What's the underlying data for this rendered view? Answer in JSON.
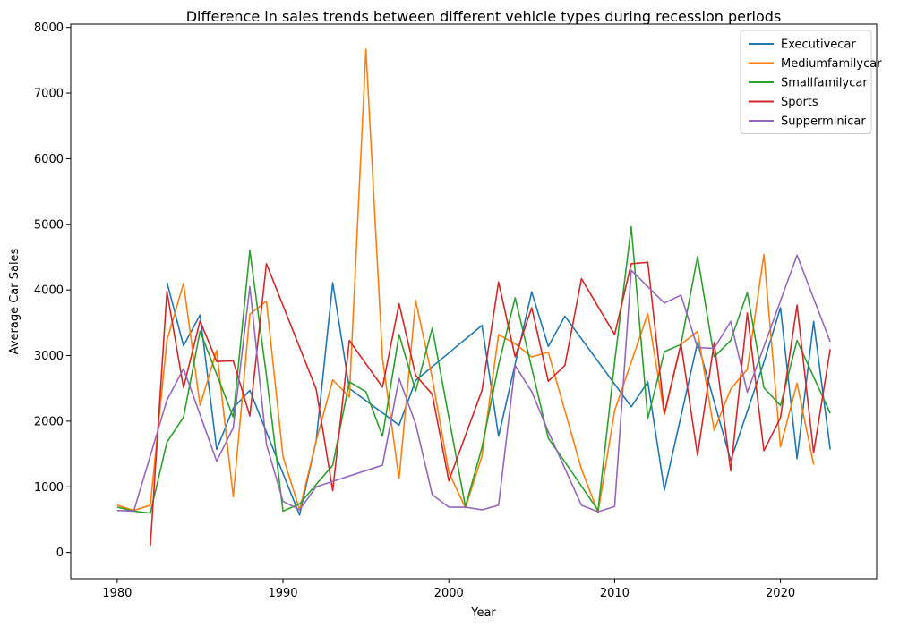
{
  "chart_data": {
    "type": "line",
    "title": "Difference in sales trends between different vehicle types during recession periods",
    "xlabel": "Year",
    "ylabel": "Average Car Sales",
    "xlim": [
      1977.2,
      2025.8
    ],
    "ylim": [
      -400,
      8050
    ],
    "xticks": [
      1980,
      1990,
      2000,
      2010,
      2020
    ],
    "yticks": [
      0,
      1000,
      2000,
      3000,
      4000,
      5000,
      6000,
      7000,
      8000
    ],
    "grid": false,
    "legend_position": "top-right",
    "series": [
      {
        "name": "Executivecar",
        "color": "#1f77b4",
        "points": [
          [
            1983,
            4120
          ],
          [
            1984,
            3150
          ],
          [
            1985,
            3620
          ],
          [
            1986,
            1570
          ],
          [
            1987,
            2200
          ],
          [
            1988,
            2470
          ],
          [
            1991,
            570
          ],
          [
            1992,
            1700
          ],
          [
            1993,
            4110
          ],
          [
            1994,
            2500
          ],
          [
            1997,
            1940
          ],
          [
            1998,
            2620
          ],
          [
            2002,
            3460
          ],
          [
            2003,
            1770
          ],
          [
            2005,
            3970
          ],
          [
            2006,
            3140
          ],
          [
            2007,
            3600
          ],
          [
            2011,
            2220
          ],
          [
            2012,
            2600
          ],
          [
            2013,
            950
          ],
          [
            2015,
            3200
          ],
          [
            2017,
            1400
          ],
          [
            2019,
            2900
          ],
          [
            2020,
            3730
          ],
          [
            2021,
            1430
          ],
          [
            2022,
            3520
          ],
          [
            2023,
            1570
          ]
        ]
      },
      {
        "name": "Mediumfamilycar",
        "color": "#ff7f0e",
        "points": [
          [
            1980,
            720
          ],
          [
            1981,
            640
          ],
          [
            1982,
            720
          ],
          [
            1983,
            3230
          ],
          [
            1984,
            4100
          ],
          [
            1985,
            2240
          ],
          [
            1986,
            3080
          ],
          [
            1987,
            850
          ],
          [
            1988,
            3630
          ],
          [
            1989,
            3830
          ],
          [
            1990,
            1460
          ],
          [
            1991,
            650
          ],
          [
            1992,
            1700
          ],
          [
            1993,
            2630
          ],
          [
            1994,
            2370
          ],
          [
            1995,
            7670
          ],
          [
            1996,
            2960
          ],
          [
            1997,
            1120
          ],
          [
            1998,
            3840
          ],
          [
            1999,
            2660
          ],
          [
            2000,
            1220
          ],
          [
            2001,
            680
          ],
          [
            2002,
            1470
          ],
          [
            2003,
            3320
          ],
          [
            2004,
            3180
          ],
          [
            2005,
            2980
          ],
          [
            2006,
            3050
          ],
          [
            2007,
            2160
          ],
          [
            2008,
            1270
          ],
          [
            2009,
            610
          ],
          [
            2010,
            2160
          ],
          [
            2012,
            3640
          ],
          [
            2013,
            2100
          ],
          [
            2014,
            3170
          ],
          [
            2015,
            3370
          ],
          [
            2016,
            1860
          ],
          [
            2017,
            2490
          ],
          [
            2018,
            2790
          ],
          [
            2019,
            4540
          ],
          [
            2020,
            1610
          ],
          [
            2021,
            2580
          ],
          [
            2022,
            1340
          ]
        ]
      },
      {
        "name": "Smallfamilycar",
        "color": "#2ca02c",
        "points": [
          [
            1980,
            690
          ],
          [
            1981,
            630
          ],
          [
            1982,
            600
          ],
          [
            1983,
            1680
          ],
          [
            1984,
            2060
          ],
          [
            1985,
            3370
          ],
          [
            1987,
            2060
          ],
          [
            1988,
            4600
          ],
          [
            1989,
            2700
          ],
          [
            1990,
            630
          ],
          [
            1991,
            740
          ],
          [
            1993,
            1330
          ],
          [
            1994,
            2600
          ],
          [
            1995,
            2450
          ],
          [
            1996,
            1770
          ],
          [
            1997,
            3320
          ],
          [
            1998,
            2460
          ],
          [
            1999,
            3420
          ],
          [
            2001,
            700
          ],
          [
            2002,
            1600
          ],
          [
            2003,
            2860
          ],
          [
            2004,
            3880
          ],
          [
            2006,
            1740
          ],
          [
            2007,
            1380
          ],
          [
            2009,
            640
          ],
          [
            2010,
            2900
          ],
          [
            2011,
            4960
          ],
          [
            2012,
            2040
          ],
          [
            2013,
            3060
          ],
          [
            2014,
            3170
          ],
          [
            2015,
            4510
          ],
          [
            2016,
            2980
          ],
          [
            2017,
            3230
          ],
          [
            2018,
            3960
          ],
          [
            2019,
            2510
          ],
          [
            2020,
            2240
          ],
          [
            2021,
            3230
          ],
          [
            2023,
            2120
          ]
        ]
      },
      {
        "name": "Sports",
        "color": "#d62728",
        "points": [
          [
            1982,
            100
          ],
          [
            1983,
            3980
          ],
          [
            1984,
            2510
          ],
          [
            1985,
            3530
          ],
          [
            1986,
            2910
          ],
          [
            1987,
            2920
          ],
          [
            1988,
            2080
          ],
          [
            1989,
            4400
          ],
          [
            1992,
            2490
          ],
          [
            1993,
            940
          ],
          [
            1994,
            3230
          ],
          [
            1996,
            2520
          ],
          [
            1997,
            3790
          ],
          [
            1998,
            2700
          ],
          [
            1999,
            2410
          ],
          [
            2000,
            1090
          ],
          [
            2002,
            2470
          ],
          [
            2003,
            4120
          ],
          [
            2004,
            2980
          ],
          [
            2005,
            3730
          ],
          [
            2006,
            2610
          ],
          [
            2007,
            2850
          ],
          [
            2008,
            4170
          ],
          [
            2010,
            3320
          ],
          [
            2011,
            4400
          ],
          [
            2012,
            4420
          ],
          [
            2013,
            2120
          ],
          [
            2014,
            3180
          ],
          [
            2015,
            1480
          ],
          [
            2016,
            3200
          ],
          [
            2017,
            1240
          ],
          [
            2018,
            3650
          ],
          [
            2019,
            1550
          ],
          [
            2020,
            2050
          ],
          [
            2021,
            3770
          ],
          [
            2022,
            1520
          ],
          [
            2023,
            3100
          ]
        ]
      },
      {
        "name": "Supperminicar",
        "color": "#9467bd",
        "points": [
          [
            1980,
            640
          ],
          [
            1981,
            630
          ],
          [
            1983,
            2320
          ],
          [
            1984,
            2800
          ],
          [
            1985,
            2100
          ],
          [
            1986,
            1390
          ],
          [
            1987,
            1900
          ],
          [
            1988,
            4050
          ],
          [
            1989,
            1650
          ],
          [
            1990,
            780
          ],
          [
            1991,
            650
          ],
          [
            1992,
            1000
          ],
          [
            1996,
            1330
          ],
          [
            1997,
            2650
          ],
          [
            1998,
            1960
          ],
          [
            1999,
            880
          ],
          [
            2000,
            690
          ],
          [
            2001,
            690
          ],
          [
            2002,
            650
          ],
          [
            2003,
            720
          ],
          [
            2004,
            2850
          ],
          [
            2005,
            2450
          ],
          [
            2006,
            1840
          ],
          [
            2008,
            720
          ],
          [
            2009,
            620
          ],
          [
            2010,
            700
          ],
          [
            2011,
            4300
          ],
          [
            2013,
            3800
          ],
          [
            2014,
            3920
          ],
          [
            2015,
            3120
          ],
          [
            2016,
            3110
          ],
          [
            2017,
            3520
          ],
          [
            2018,
            2440
          ],
          [
            2021,
            4530
          ],
          [
            2023,
            3210
          ]
        ]
      }
    ]
  }
}
